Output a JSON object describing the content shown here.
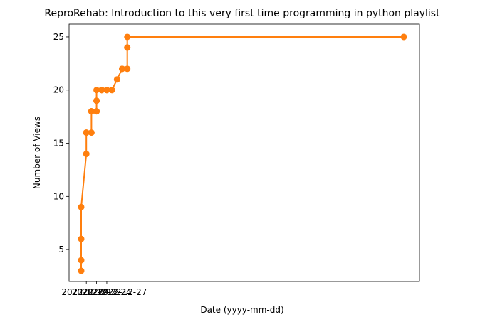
{
  "chart_data": {
    "type": "line",
    "title": "ReproRehab: Introduction to this very first time programming in python playlist",
    "xlabel": "Date (yyyy-mm-dd)",
    "ylabel": "Number of Views",
    "x_tick_labels": [
      "2022-12-20",
      "2022-12-22",
      "2022-12-24",
      "2022-12-27"
    ],
    "ylim": [
      2,
      26.2
    ],
    "y_ticks": [
      5,
      10,
      15,
      20,
      25
    ],
    "grid": false,
    "line_color": "#ff7f0e",
    "marker": "circle",
    "series": [
      {
        "x": [
          "2022-12-19",
          "2022-12-19",
          "2022-12-19",
          "2022-12-19",
          "2022-12-20",
          "2022-12-20",
          "2022-12-20",
          "2022-12-20",
          "2022-12-21",
          "2022-12-21",
          "2022-12-21",
          "2022-12-21",
          "2022-12-22",
          "2022-12-22",
          "2022-12-22",
          "2022-12-22",
          "2022-12-22",
          "2022-12-23",
          "2022-12-23",
          "2022-12-23",
          "2022-12-23",
          "2022-12-24",
          "2022-12-24",
          "2022-12-24",
          "2022-12-25",
          "2022-12-25",
          "2022-12-26",
          "2022-12-27",
          "2022-12-27",
          "2022-12-28",
          "2022-12-28",
          "2022-12-28",
          "2022-12-28",
          "2023-02-20"
        ],
        "values": [
          3,
          4,
          6,
          9,
          14,
          14,
          16,
          16,
          16,
          18,
          18,
          18,
          18,
          18,
          19,
          19,
          20,
          20,
          20,
          20,
          20,
          20,
          20,
          20,
          20,
          20,
          21,
          22,
          22,
          22,
          24,
          24,
          25,
          25
        ]
      }
    ]
  }
}
